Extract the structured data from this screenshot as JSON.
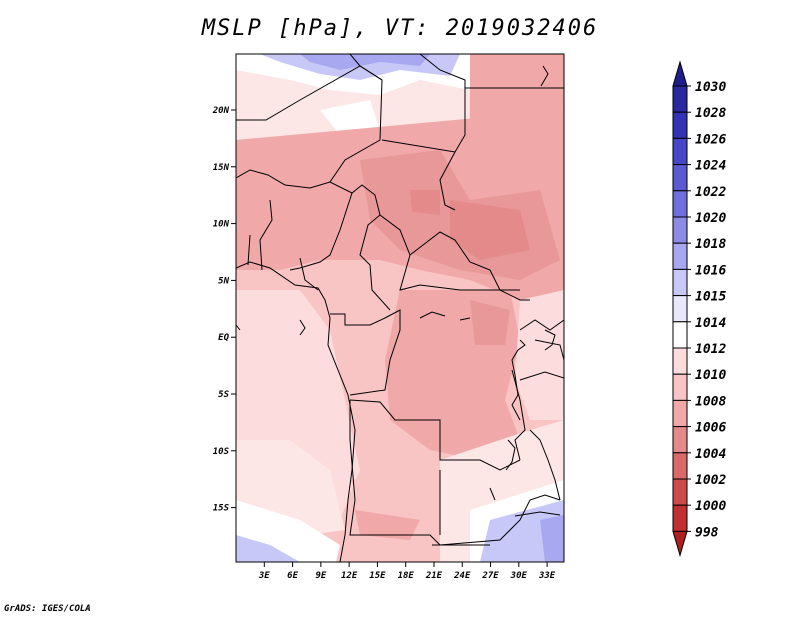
{
  "title": "MSLP [hPa], VT: 2019032406",
  "credit": "GrADS: IGES/COLA",
  "map": {
    "lat_labels": [
      "20N",
      "15N",
      "10N",
      "5N",
      "EQ",
      "5S",
      "10S",
      "15S"
    ],
    "lon_labels": [
      "3E",
      "6E",
      "9E",
      "12E",
      "15E",
      "18E",
      "21E",
      "24E",
      "27E",
      "30E",
      "33E"
    ]
  },
  "colorbar": {
    "levels": [
      "1030",
      "1028",
      "1026",
      "1024",
      "1022",
      "1020",
      "1018",
      "1016",
      "1015",
      "1014",
      "1012",
      "1010",
      "1008",
      "1006",
      "1004",
      "1002",
      "1000",
      "998"
    ],
    "colors": [
      "#1e1e8c",
      "#2828a0",
      "#3232b4",
      "#4646c8",
      "#5a5ad2",
      "#7070dc",
      "#8c8ce6",
      "#a8a8f0",
      "#c8c8f8",
      "#e8e8fc",
      "#ffffff",
      "#fcdcdc",
      "#f8c4c4",
      "#f0a8a8",
      "#e48a8a",
      "#d86a6a",
      "#cc4a4a",
      "#c03030",
      "#b02020"
    ]
  }
}
